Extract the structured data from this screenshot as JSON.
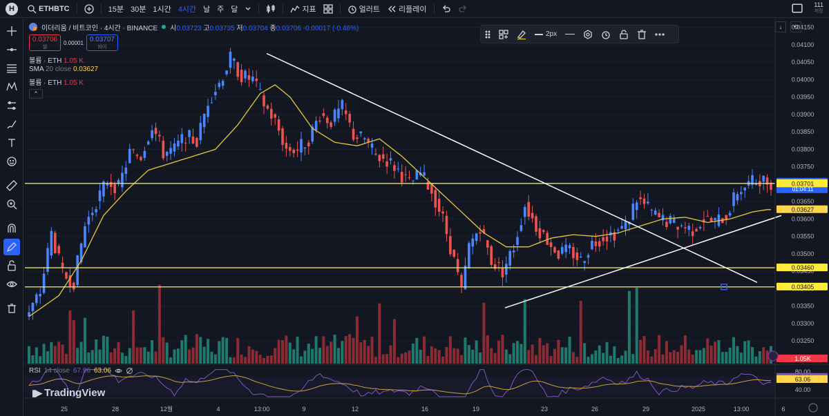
{
  "topbar": {
    "logo_letter": "H",
    "symbol": "ETHBTC",
    "intervals": [
      "15분",
      "30분",
      "1시간",
      "4시간",
      "날",
      "주",
      "달"
    ],
    "active_interval": "4시간",
    "indicators_label": "지표",
    "alert_label": "얼러트",
    "replay_label": "리플레이",
    "count_value": "111",
    "count_sub": "저장"
  },
  "legend": {
    "title": "이더리움 / 비트코인 · 4시간 · BINANCE",
    "o_key": "시",
    "o_val": "0.03723",
    "h_key": "고",
    "h_val": "0.03735",
    "l_key": "저",
    "l_val": "0.03704",
    "c_key": "종",
    "c_val": "0.03706",
    "change": "-0.00017 (-0.46%)",
    "sell_price": "0.03706",
    "sell_label": "셀",
    "spread": "0.00001",
    "buy_price": "0.03707",
    "buy_label": "바이",
    "vol1_name": "볼륨 · ETH",
    "vol1_val": "1.05 K",
    "sma_name": "SMA",
    "sma_params": "20 close",
    "sma_val": "0.03627",
    "vol2_name": "볼륨 · ETH",
    "vol2_val": "1.05 K",
    "collapse_glyph": "⌃"
  },
  "drawing_toolbar": {
    "width_label": "2px"
  },
  "rsi_legend": {
    "name": "RSI",
    "params": "14 close",
    "rsi_val": "67.96",
    "ma_val": "63.06"
  },
  "watermark": "TradingView",
  "chart_data": {
    "type": "candlestick",
    "symbol": "ETHBTC",
    "ylim": [
      0.03185,
      0.04175
    ],
    "y_ticks": [
      "0.04150",
      "0.04100",
      "0.04050",
      "0.04000",
      "0.03950",
      "0.03900",
      "0.03850",
      "0.03800",
      "0.03750",
      "0.03700",
      "0.03650",
      "0.03600",
      "0.03550",
      "0.03500",
      "0.03450",
      "0.03400",
      "0.03350",
      "0.03300",
      "0.03250"
    ],
    "x_ticks": [
      "25",
      "28",
      "12월",
      "4",
      "13:00",
      "9",
      "12",
      "16",
      "19",
      "23",
      "26",
      "29",
      "2025",
      "13:00",
      "6"
    ],
    "price_labels": [
      {
        "value": 0.03706,
        "text": "0.03706",
        "sub": "01:04:11",
        "color": "#2962ff"
      },
      {
        "value": 0.03702,
        "text": "0.03702",
        "color": "#ffeb3b"
      },
      {
        "value": 0.03701,
        "text": "0.03701",
        "color": "#ffeb3b"
      },
      {
        "value": 0.03627,
        "text": "0.03627",
        "color": "#ffd54f"
      },
      {
        "value": 0.0346,
        "text": "0.03460",
        "color": "#ffeb3b"
      },
      {
        "value": 0.03405,
        "text": "0.03405",
        "color": "#ffeb3b"
      }
    ],
    "volume_label": "1.05K",
    "rsi_ticks": [
      "80.00",
      "40.00"
    ],
    "rsi_labels": [
      {
        "value": 67.96,
        "text": "67.96",
        "color": "#7e57c2"
      },
      {
        "value": 63.06,
        "text": "63.06",
        "color": "#ffd54f"
      }
    ],
    "horizontal_lines": [
      0.03702,
      0.0346,
      0.03405
    ],
    "trendlines": [
      {
        "from": [
          0,
          0.04075
        ],
        "to": [
          1,
          0.03418
        ],
        "color": "#ffffff",
        "note": "descending resistance"
      },
      {
        "from": [
          0,
          0.03345
        ],
        "to": [
          1,
          0.0361
        ],
        "color": "#ffffff",
        "note": "ascending support"
      }
    ],
    "price_path": [
      [
        0,
        0.0333
      ],
      [
        3,
        0.0339
      ],
      [
        6,
        0.0356
      ],
      [
        9,
        0.0344
      ],
      [
        12,
        0.0342
      ],
      [
        15,
        0.0358
      ],
      [
        18,
        0.0365
      ],
      [
        21,
        0.0371
      ],
      [
        24,
        0.0369
      ],
      [
        27,
        0.0379
      ],
      [
        30,
        0.0378
      ],
      [
        33,
        0.0387
      ],
      [
        36,
        0.0379
      ],
      [
        39,
        0.038
      ],
      [
        42,
        0.0384
      ],
      [
        45,
        0.0382
      ],
      [
        48,
        0.0394
      ],
      [
        51,
        0.0399
      ],
      [
        54,
        0.0406
      ],
      [
        57,
        0.0401
      ],
      [
        60,
        0.04
      ],
      [
        63,
        0.0393
      ],
      [
        66,
        0.0388
      ],
      [
        69,
        0.038
      ],
      [
        72,
        0.038
      ],
      [
        75,
        0.0383
      ],
      [
        78,
        0.039
      ],
      [
        81,
        0.0388
      ],
      [
        84,
        0.0392
      ],
      [
        87,
        0.0384
      ],
      [
        90,
        0.0383
      ],
      [
        93,
        0.0378
      ],
      [
        96,
        0.0377
      ],
      [
        99,
        0.0374
      ],
      [
        102,
        0.037
      ],
      [
        105,
        0.0373
      ],
      [
        108,
        0.0368
      ],
      [
        111,
        0.036
      ],
      [
        114,
        0.0348
      ],
      [
        116,
        0.0339
      ],
      [
        118,
        0.0352
      ],
      [
        121,
        0.0358
      ],
      [
        124,
        0.0348
      ],
      [
        127,
        0.0345
      ],
      [
        130,
        0.0352
      ],
      [
        133,
        0.0364
      ],
      [
        136,
        0.0358
      ],
      [
        139,
        0.0354
      ],
      [
        142,
        0.035
      ],
      [
        145,
        0.0351
      ],
      [
        148,
        0.0348
      ],
      [
        151,
        0.0353
      ],
      [
        154,
        0.0355
      ],
      [
        157,
        0.0356
      ],
      [
        160,
        0.0358
      ],
      [
        163,
        0.0366
      ],
      [
        166,
        0.0363
      ],
      [
        169,
        0.036
      ],
      [
        172,
        0.0359
      ],
      [
        175,
        0.0358
      ],
      [
        178,
        0.0357
      ],
      [
        181,
        0.036
      ],
      [
        184,
        0.0359
      ],
      [
        187,
        0.0361
      ],
      [
        190,
        0.0368
      ],
      [
        193,
        0.037
      ],
      [
        196,
        0.03715
      ],
      [
        198,
        0.03706
      ]
    ],
    "sma_path": [
      [
        0,
        0.0332
      ],
      [
        8,
        0.0338
      ],
      [
        14,
        0.0348
      ],
      [
        20,
        0.0361
      ],
      [
        26,
        0.0368
      ],
      [
        32,
        0.0374
      ],
      [
        38,
        0.0376
      ],
      [
        44,
        0.0378
      ],
      [
        50,
        0.038
      ],
      [
        56,
        0.0387
      ],
      [
        62,
        0.0396
      ],
      [
        66,
        0.03985
      ],
      [
        70,
        0.0395
      ],
      [
        76,
        0.0386
      ],
      [
        82,
        0.0382
      ],
      [
        88,
        0.0381
      ],
      [
        94,
        0.0383
      ],
      [
        100,
        0.0378
      ],
      [
        106,
        0.0372
      ],
      [
        112,
        0.0366
      ],
      [
        118,
        0.036
      ],
      [
        122,
        0.0356
      ],
      [
        128,
        0.0352
      ],
      [
        134,
        0.0352
      ],
      [
        140,
        0.03545
      ],
      [
        146,
        0.03555
      ],
      [
        152,
        0.0355
      ],
      [
        158,
        0.0356
      ],
      [
        164,
        0.0358
      ],
      [
        170,
        0.036
      ],
      [
        176,
        0.03605
      ],
      [
        182,
        0.0359
      ],
      [
        188,
        0.036
      ],
      [
        194,
        0.0362
      ],
      [
        198,
        0.03627
      ]
    ],
    "volume_series_note": "volume bars, colored by candle direction"
  }
}
